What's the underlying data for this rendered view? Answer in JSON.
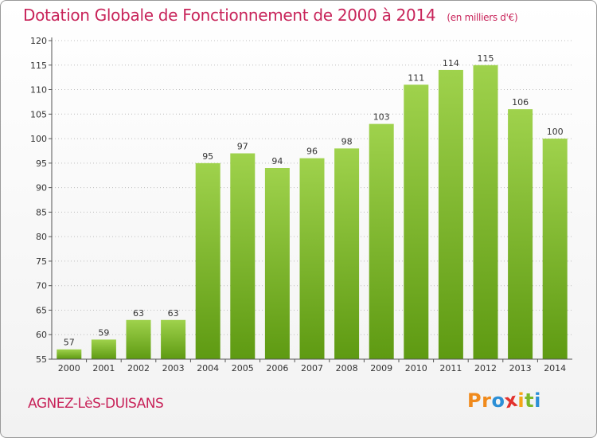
{
  "chart_data": {
    "type": "bar",
    "title": "Dotation Globale de Fonctionnement de 2000 à 2014",
    "subtitle": "(en milliers d'€)",
    "categories": [
      "2000",
      "2001",
      "2002",
      "2003",
      "2004",
      "2005",
      "2006",
      "2007",
      "2008",
      "2009",
      "2010",
      "2011",
      "2012",
      "2013",
      "2014"
    ],
    "values": [
      57,
      59,
      63,
      63,
      95,
      97,
      94,
      96,
      98,
      103,
      111,
      114,
      115,
      106,
      100
    ],
    "ylim": [
      55,
      120
    ],
    "yticks": [
      55,
      60,
      65,
      70,
      75,
      80,
      85,
      90,
      95,
      100,
      105,
      110,
      115,
      120
    ],
    "grid": "horizontal-dotted",
    "bar_color_top": "#9fd24c",
    "bar_color_bottom": "#5e9a12"
  },
  "footer": {
    "commune": "AGNEZ-LèS-DUISANS",
    "logo_letters": [
      "P",
      "r",
      "o",
      "x",
      "i",
      "t",
      "i"
    ],
    "logo_colors": [
      "#f08a1c",
      "#f08a1c",
      "#2c8fd6",
      "#e2312d",
      "#f5a516",
      "#7bb82a",
      "#2c8fd6"
    ]
  }
}
